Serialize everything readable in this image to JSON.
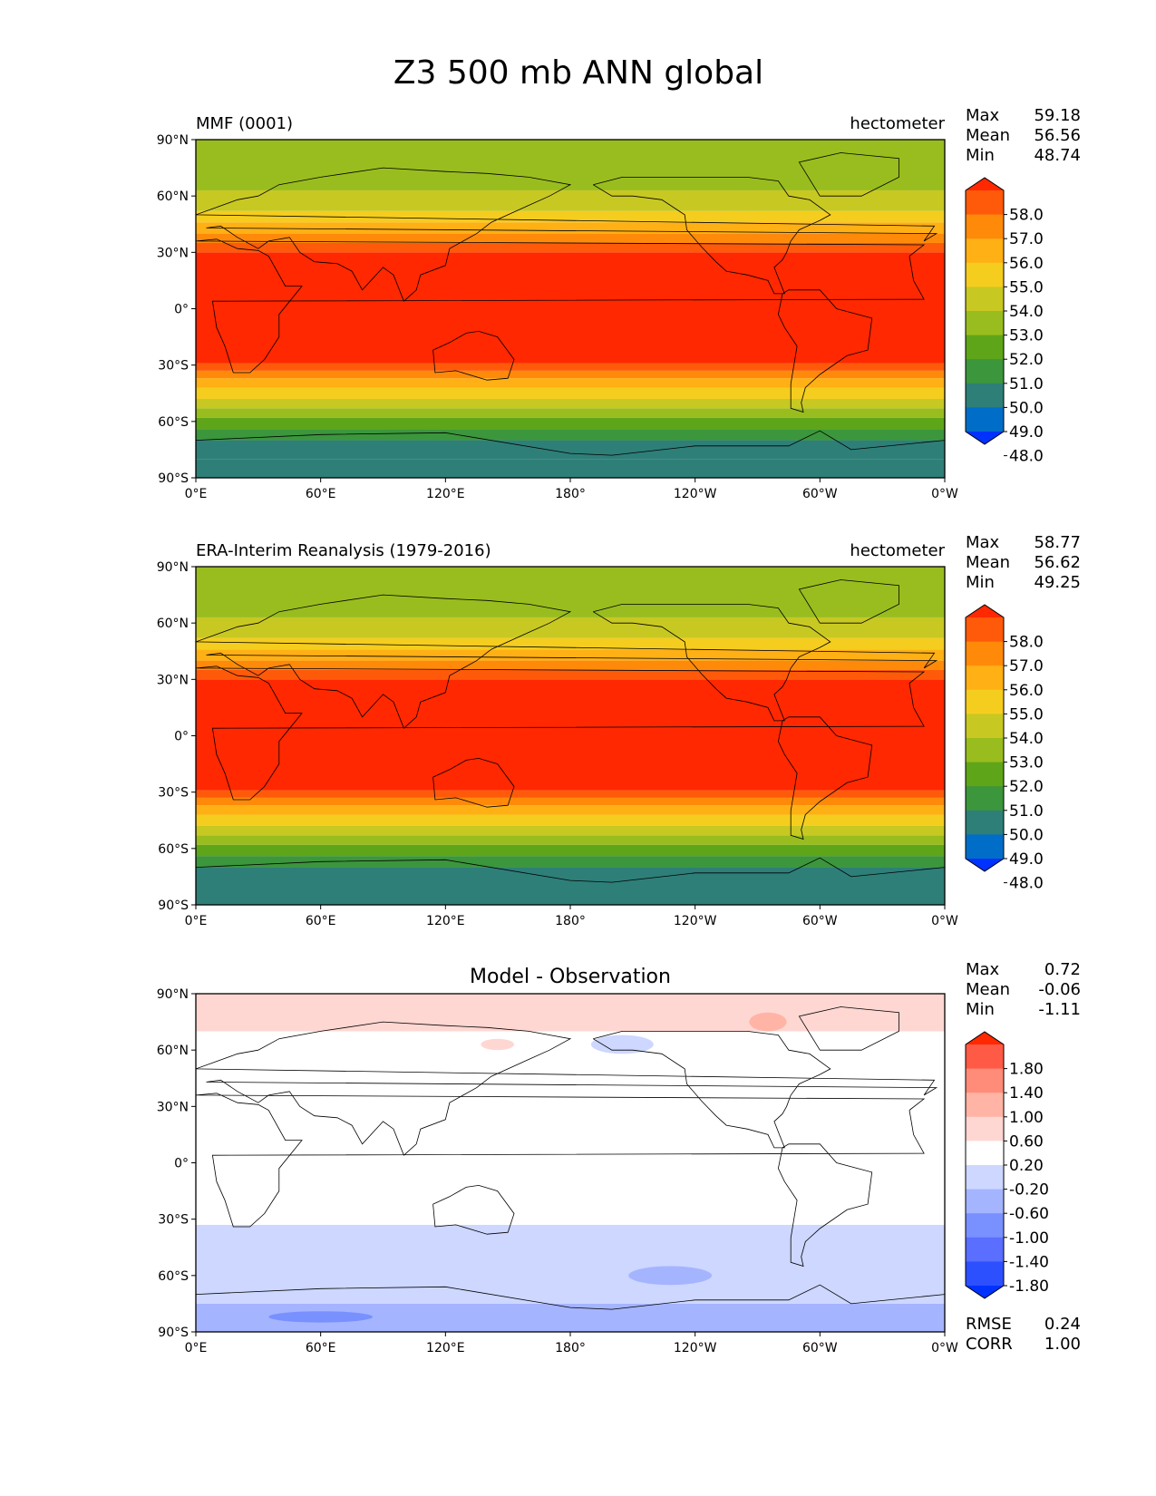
{
  "figure": {
    "title": "Z3 500 mb ANN global"
  },
  "axes": {
    "lat_labels": [
      "90°N",
      "60°N",
      "30°N",
      "0°",
      "30°S",
      "60°S",
      "90°S"
    ],
    "lon_labels": [
      "0°E",
      "60°E",
      "120°E",
      "180°",
      "120°W",
      "60°W",
      "0°W"
    ]
  },
  "panels": [
    {
      "id": "mmf",
      "left_title": "MMF (0001)",
      "right_title": "hectometer",
      "center_title": "",
      "stats": [
        {
          "label": "Max",
          "value": "59.18"
        },
        {
          "label": "Mean",
          "value": "56.56"
        },
        {
          "label": "Min",
          "value": "48.74"
        }
      ],
      "colorbar": {
        "colors": [
          "#ff2800",
          "#ff5a0a",
          "#ff8a0a",
          "#ffb014",
          "#f5cd1e",
          "#c8c823",
          "#99bd1e",
          "#5fa519",
          "#3c963c",
          "#2e7f78",
          "#006ec8",
          "#0032ff"
        ],
        "labels": [
          "58.0",
          "57.0",
          "56.0",
          "55.0",
          "54.0",
          "53.0",
          "52.0",
          "51.0",
          "50.0",
          "49.0",
          "48.0"
        ]
      },
      "map_fill": [
        {
          "from": -90,
          "to": -80,
          "color": "#2e7f78"
        },
        {
          "from": -80,
          "to": -70,
          "color": "#2e7f78"
        },
        {
          "from": -70,
          "to": -64,
          "color": "#3c963c"
        },
        {
          "from": -64,
          "to": -58,
          "color": "#5fa519"
        },
        {
          "from": -58,
          "to": -53,
          "color": "#99bd1e"
        },
        {
          "from": -53,
          "to": -48,
          "color": "#c8c823"
        },
        {
          "from": -48,
          "to": -42,
          "color": "#f5cd1e"
        },
        {
          "from": -42,
          "to": -37,
          "color": "#ffb014"
        },
        {
          "from": -37,
          "to": -33,
          "color": "#ff8a0a"
        },
        {
          "from": -33,
          "to": -29,
          "color": "#ff5a0a"
        },
        {
          "from": -29,
          "to": 30,
          "color": "#ff2800"
        },
        {
          "from": 30,
          "to": 35,
          "color": "#ff5a0a"
        },
        {
          "from": 35,
          "to": 40,
          "color": "#ff8a0a"
        },
        {
          "from": 40,
          "to": 46,
          "color": "#ffb014"
        },
        {
          "from": 46,
          "to": 52,
          "color": "#f5cd1e"
        },
        {
          "from": 52,
          "to": 63,
          "color": "#c8c823"
        },
        {
          "from": 63,
          "to": 90,
          "color": "#99bd1e"
        }
      ],
      "bottom_labels": false,
      "extras": []
    },
    {
      "id": "era",
      "left_title": "ERA-Interim Reanalysis (1979-2016)",
      "right_title": "hectometer",
      "center_title": "",
      "stats": [
        {
          "label": "Max",
          "value": "58.77"
        },
        {
          "label": "Mean",
          "value": "56.62"
        },
        {
          "label": "Min",
          "value": "49.25"
        }
      ],
      "colorbar": {
        "colors": [
          "#ff2800",
          "#ff5a0a",
          "#ff8a0a",
          "#ffb014",
          "#f5cd1e",
          "#c8c823",
          "#99bd1e",
          "#5fa519",
          "#3c963c",
          "#2e7f78",
          "#006ec8",
          "#0032ff"
        ],
        "labels": [
          "58.0",
          "57.0",
          "56.0",
          "55.0",
          "54.0",
          "53.0",
          "52.0",
          "51.0",
          "50.0",
          "49.0",
          "48.0"
        ]
      },
      "map_fill": [
        {
          "from": -90,
          "to": -70,
          "color": "#2e7f78"
        },
        {
          "from": -70,
          "to": -64,
          "color": "#3c963c"
        },
        {
          "from": -64,
          "to": -58,
          "color": "#5fa519"
        },
        {
          "from": -58,
          "to": -53,
          "color": "#99bd1e"
        },
        {
          "from": -53,
          "to": -48,
          "color": "#c8c823"
        },
        {
          "from": -48,
          "to": -42,
          "color": "#f5cd1e"
        },
        {
          "from": -42,
          "to": -37,
          "color": "#ffb014"
        },
        {
          "from": -37,
          "to": -33,
          "color": "#ff8a0a"
        },
        {
          "from": -33,
          "to": -29,
          "color": "#ff5a0a"
        },
        {
          "from": -29,
          "to": 30,
          "color": "#ff2800"
        },
        {
          "from": 30,
          "to": 35,
          "color": "#ff5a0a"
        },
        {
          "from": 35,
          "to": 40,
          "color": "#ff8a0a"
        },
        {
          "from": 40,
          "to": 46,
          "color": "#ffb014"
        },
        {
          "from": 46,
          "to": 52,
          "color": "#f5cd1e"
        },
        {
          "from": 52,
          "to": 63,
          "color": "#c8c823"
        },
        {
          "from": 63,
          "to": 90,
          "color": "#99bd1e"
        }
      ],
      "bottom_labels": false,
      "extras": []
    },
    {
      "id": "diff",
      "left_title": "",
      "right_title": "",
      "center_title": "Model - Observation",
      "stats": [
        {
          "label": "Max",
          "value": "0.72"
        },
        {
          "label": "Mean",
          "value": "-0.06"
        },
        {
          "label": "Min",
          "value": "-1.11"
        }
      ],
      "colorbar": {
        "colors": [
          "#ff2800",
          "#ff5a46",
          "#ff8c78",
          "#ffb4a5",
          "#ffd7d2",
          "#ffffff",
          "#cdd7ff",
          "#a5b4ff",
          "#7891ff",
          "#5a6eff",
          "#2d50ff",
          "#0032ff"
        ],
        "labels": [
          "1.80",
          "1.40",
          "1.00",
          "0.60",
          "0.20",
          "-0.20",
          "-0.60",
          "-1.00",
          "-1.40",
          "-1.80"
        ]
      },
      "map_fill": [
        {
          "from": -90,
          "to": -75,
          "color": "#a5b4ff"
        },
        {
          "from": -75,
          "to": -33,
          "color": "#cdd7ff"
        },
        {
          "from": -33,
          "to": 70,
          "color": "#ffffff"
        },
        {
          "from": 70,
          "to": 90,
          "color": "#ffd7d2"
        }
      ],
      "bottom_labels": [
        {
          "label": "RMSE",
          "value": "0.24"
        },
        {
          "label": "CORR",
          "value": "1.00"
        }
      ],
      "extras": [
        {
          "lon": 60,
          "lat": -82,
          "rx": 25,
          "ry": 3,
          "color": "#7891ff"
        },
        {
          "lon": 228,
          "lat": -60,
          "rx": 20,
          "ry": 5,
          "color": "#a5b4ff"
        },
        {
          "lon": 275,
          "lat": 75,
          "rx": 9,
          "ry": 5,
          "color": "#ffb4a5"
        },
        {
          "lon": 205,
          "lat": 63,
          "rx": 15,
          "ry": 5,
          "color": "#cdd7ff"
        },
        {
          "lon": 145,
          "lat": 63,
          "rx": 8,
          "ry": 3,
          "color": "#ffd7d2"
        }
      ]
    }
  ]
}
